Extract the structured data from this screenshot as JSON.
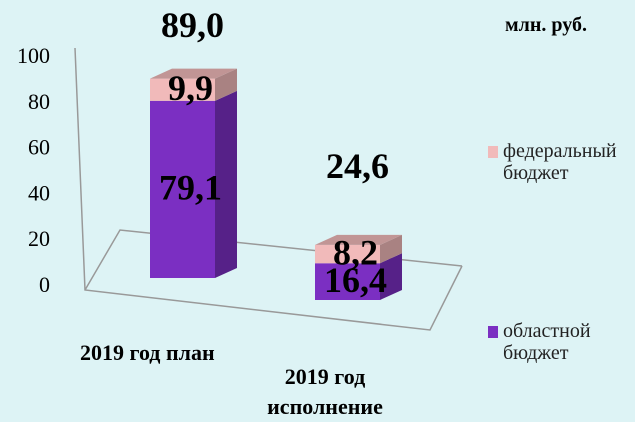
{
  "chart_data": {
    "type": "bar3d_stacked",
    "unit": "млн. руб.",
    "categories": [
      "2019 год план",
      "2019 год исполнение"
    ],
    "series": [
      {
        "name": "областной бюджет",
        "color": "#7b2fc2",
        "values": [
          79.1,
          16.4
        ],
        "value_labels": [
          "79,1",
          "16,4"
        ]
      },
      {
        "name": "федеральный бюджет",
        "color": "#f1baba",
        "values": [
          9.9,
          8.2
        ],
        "value_labels": [
          "9,9",
          "8,2"
        ]
      }
    ],
    "totals": [
      89.0,
      24.6
    ],
    "total_labels": [
      "89,0",
      "24,6"
    ],
    "ylim": [
      0,
      100
    ],
    "yticks": [
      0,
      20,
      40,
      60,
      80,
      100
    ],
    "grid": false
  }
}
